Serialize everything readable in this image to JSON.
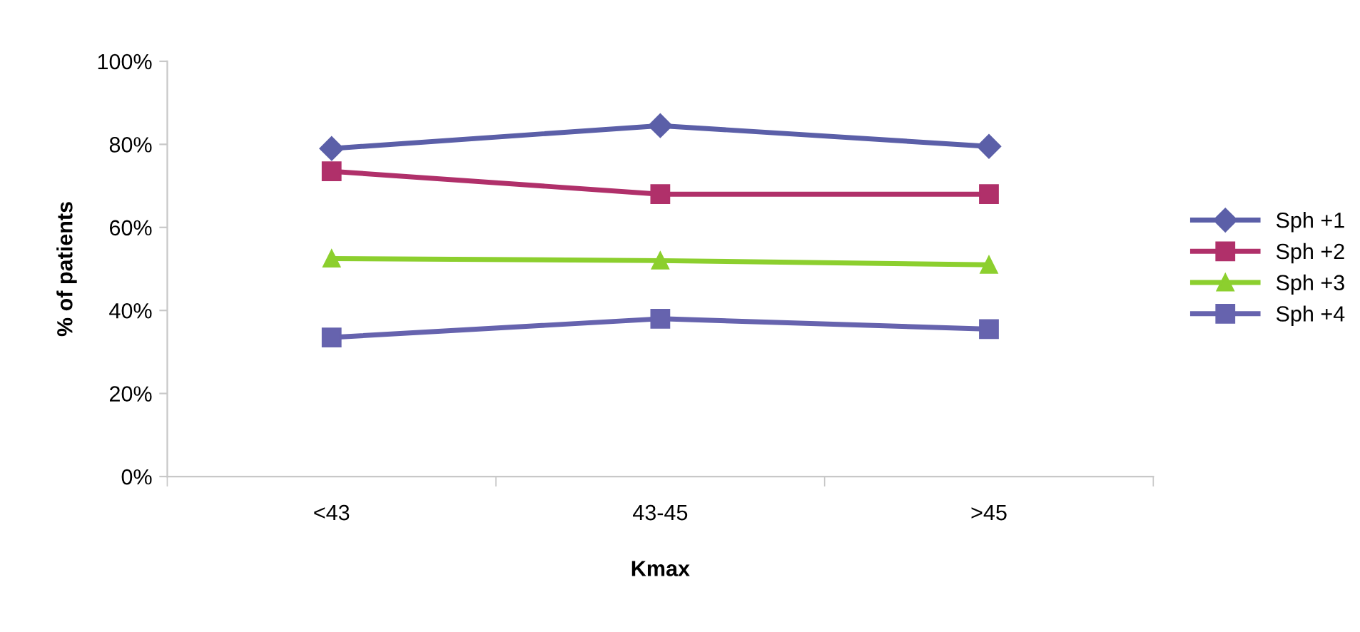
{
  "chart_data": {
    "type": "line",
    "xlabel": "Kmax",
    "ylabel": "% of patients",
    "categories": [
      "<43",
      "43-45",
      ">45"
    ],
    "series": [
      {
        "name": "Sph +1",
        "color": "#5b5fa8",
        "marker": "diamond",
        "values": [
          79,
          84.5,
          79.5
        ]
      },
      {
        "name": "Sph +2",
        "color": "#b0306a",
        "marker": "square",
        "values": [
          73.5,
          68,
          68
        ]
      },
      {
        "name": "Sph +3",
        "color": "#8ccf2e",
        "marker": "triangle",
        "values": [
          52.5,
          52,
          51
        ]
      },
      {
        "name": "Sph +4",
        "color": "#6663ae",
        "marker": "square",
        "values": [
          33.5,
          38,
          35.5
        ]
      }
    ],
    "ylim": [
      0,
      100
    ],
    "yticks": [
      {
        "value": 0,
        "label": "0%"
      },
      {
        "value": 20,
        "label": "20%"
      },
      {
        "value": 40,
        "label": "40%"
      },
      {
        "value": 60,
        "label": "60%"
      },
      {
        "value": 80,
        "label": "80%"
      },
      {
        "value": 100,
        "label": "100%"
      }
    ],
    "grid": false,
    "legend": "right",
    "line_style": "solid"
  }
}
